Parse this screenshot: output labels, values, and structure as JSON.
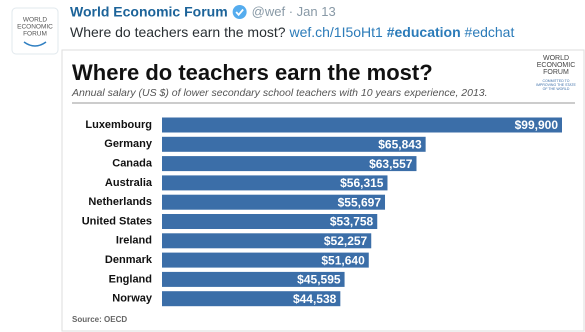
{
  "tweet": {
    "avatar_text": [
      "WORLD",
      "ECONOMIC",
      "FORUM"
    ],
    "name": "World Economic Forum",
    "handle": "@wef",
    "separator": "·",
    "date": "Jan 13",
    "text": "Where do teachers earn the most?",
    "link": "wef.ch/1I5oHt1",
    "hashtags": [
      "#education",
      "#edchat"
    ]
  },
  "chart_data": {
    "type": "bar",
    "orientation": "horizontal",
    "title": "Where do teachers earn the most?",
    "subtitle": "Annual salary (US $) of lower secondary school teachers with 10 years experience, 2013.",
    "logo": [
      "WORLD",
      "ECONOMIC",
      "FORUM"
    ],
    "logo_tagline": [
      "COMMITTED TO",
      "IMPROVING THE STATE",
      "OF THE WORLD"
    ],
    "categories": [
      "Luxembourg",
      "Germany",
      "Canada",
      "Australia",
      "Netherlands",
      "United States",
      "Ireland",
      "Denmark",
      "England",
      "Norway"
    ],
    "values": [
      99900,
      65843,
      63557,
      56315,
      55697,
      53758,
      52257,
      51640,
      45595,
      44538
    ],
    "value_labels": [
      "$99,900",
      "$65,843",
      "$63,557",
      "$56,315",
      "$55,697",
      "$53,758",
      "$52,257",
      "$51,640",
      "$45,595",
      "$44,538"
    ],
    "color": "#3b6ea8",
    "source": "Source: OECD"
  }
}
